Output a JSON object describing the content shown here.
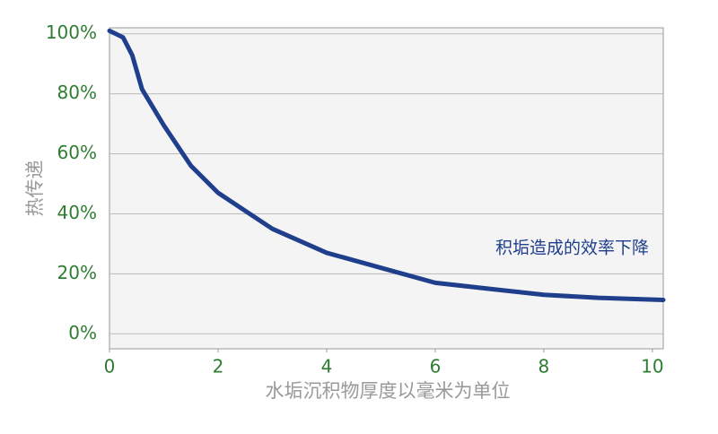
{
  "chart_data": {
    "type": "line",
    "y_label": "热传递",
    "x_label": "水垢沉积物厚度以毫米为单位",
    "annotation": "积垢造成的效率下降",
    "x": [
      0,
      0.25,
      0.42,
      0.6,
      1,
      1.5,
      2,
      3,
      4,
      5,
      6,
      7,
      8,
      9,
      10.2
    ],
    "series": [
      {
        "name": "积垢造成的效率下降",
        "color": "#1f3f8c",
        "values": [
          101,
          98.8,
          92.8,
          81.5,
          69.5,
          56,
          47,
          35,
          27,
          22,
          17,
          15,
          13,
          12,
          11.3
        ]
      }
    ],
    "xlim": [
      0,
      10.2
    ],
    "xticks": [
      0,
      2,
      4,
      6,
      8,
      10
    ],
    "ylim": [
      -5,
      102
    ],
    "yticks": [
      {
        "value": 0,
        "label": "0%"
      },
      {
        "value": 20,
        "label": "20%"
      },
      {
        "value": 40,
        "label": "40%"
      },
      {
        "value": 60,
        "label": "60%"
      },
      {
        "value": 80,
        "label": "80%"
      },
      {
        "value": 100,
        "label": "100%"
      }
    ],
    "grid": true
  }
}
